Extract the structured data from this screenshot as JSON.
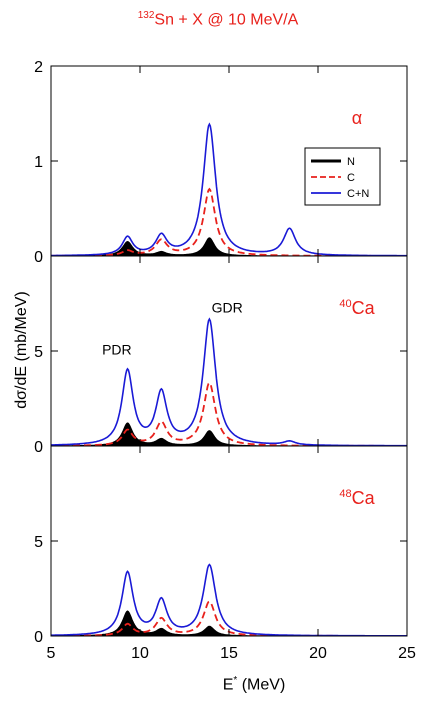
{
  "title_parts": {
    "sup": "132",
    "main": "Sn + X @ 10 MeV/A"
  },
  "colors": {
    "N": "#000000",
    "C": "#e8211c",
    "CN": "#1a1ad6",
    "label": "#e8211c"
  },
  "axis_labels": {
    "x": {
      "base": "E",
      "sup": "*",
      "rest": " (MeV)"
    },
    "y": "dσ/dE (mb/MeV)"
  },
  "chart_data": [
    {
      "type": "line",
      "panel_label": {
        "sup": "",
        "main": "α"
      },
      "xlim": [
        5,
        25
      ],
      "ylim": [
        0,
        2
      ],
      "xticks": [
        5,
        10,
        15,
        20,
        25
      ],
      "yticks": [
        0,
        1,
        2
      ],
      "yticklabels": [
        "0",
        "1",
        "2"
      ],
      "legend": {
        "position": "top-right",
        "entries": [
          "N",
          "C",
          "C+N"
        ]
      },
      "annotations": [],
      "series": [
        {
          "name": "N",
          "fill": true,
          "peaks": [
            [
              9.3,
              0.15,
              0.35
            ],
            [
              11.2,
              0.04,
              0.35
            ],
            [
              13.9,
              0.19,
              0.35
            ]
          ]
        },
        {
          "name": "C",
          "dashed": true,
          "peaks": [
            [
              9.3,
              0.05,
              0.35
            ],
            [
              11.2,
              0.16,
              0.4
            ],
            [
              13.9,
              0.7,
              0.4
            ]
          ]
        },
        {
          "name": "C+N",
          "peaks": [
            [
              9.3,
              0.19,
              0.35
            ],
            [
              11.2,
              0.2,
              0.38
            ],
            [
              13.9,
              1.38,
              0.42
            ],
            [
              18.4,
              0.28,
              0.4
            ]
          ]
        }
      ]
    },
    {
      "type": "line",
      "panel_label": {
        "sup": "40",
        "main": "Ca"
      },
      "xlim": [
        5,
        25
      ],
      "ylim": [
        0,
        10
      ],
      "xticks": [
        5,
        10,
        15,
        20,
        25
      ],
      "yticks": [
        0,
        5,
        10
      ],
      "yticklabels": [
        "0",
        "5",
        ""
      ],
      "legend": null,
      "annotations": [
        {
          "text": "PDR",
          "x": 8.7,
          "y": 4.4
        },
        {
          "text": "GDR",
          "x": 14.9,
          "y": 6.6
        }
      ],
      "series": [
        {
          "name": "N",
          "fill": true,
          "peaks": [
            [
              9.3,
              1.2,
              0.35
            ],
            [
              11.2,
              0.35,
              0.35
            ],
            [
              13.9,
              0.8,
              0.35
            ]
          ]
        },
        {
          "name": "C",
          "dashed": true,
          "peaks": [
            [
              9.3,
              0.8,
              0.35
            ],
            [
              11.2,
              1.2,
              0.38
            ],
            [
              13.9,
              3.3,
              0.4
            ]
          ]
        },
        {
          "name": "C+N",
          "peaks": [
            [
              9.3,
              3.9,
              0.38
            ],
            [
              11.2,
              2.7,
              0.38
            ],
            [
              13.9,
              6.6,
              0.42
            ],
            [
              18.4,
              0.2,
              0.4
            ]
          ]
        }
      ]
    },
    {
      "type": "line",
      "panel_label": {
        "sup": "48",
        "main": "Ca"
      },
      "xlim": [
        5,
        25
      ],
      "ylim": [
        0,
        10
      ],
      "xticks": [
        5,
        10,
        15,
        20,
        25
      ],
      "xticklabels": [
        "5",
        "10",
        "15",
        "20",
        "25"
      ],
      "yticks": [
        0,
        5,
        10
      ],
      "yticklabels": [
        "0",
        "5",
        ""
      ],
      "legend": null,
      "annotations": [],
      "series": [
        {
          "name": "N",
          "fill": true,
          "peaks": [
            [
              9.3,
              1.3,
              0.35
            ],
            [
              11.2,
              0.35,
              0.35
            ],
            [
              13.9,
              0.5,
              0.35
            ]
          ]
        },
        {
          "name": "C",
          "dashed": true,
          "peaks": [
            [
              9.3,
              0.6,
              0.35
            ],
            [
              11.2,
              0.9,
              0.38
            ],
            [
              13.9,
              1.8,
              0.4
            ]
          ]
        },
        {
          "name": "C+N",
          "peaks": [
            [
              9.3,
              3.3,
              0.38
            ],
            [
              11.2,
              1.8,
              0.38
            ],
            [
              13.9,
              3.7,
              0.42
            ]
          ]
        }
      ]
    }
  ]
}
